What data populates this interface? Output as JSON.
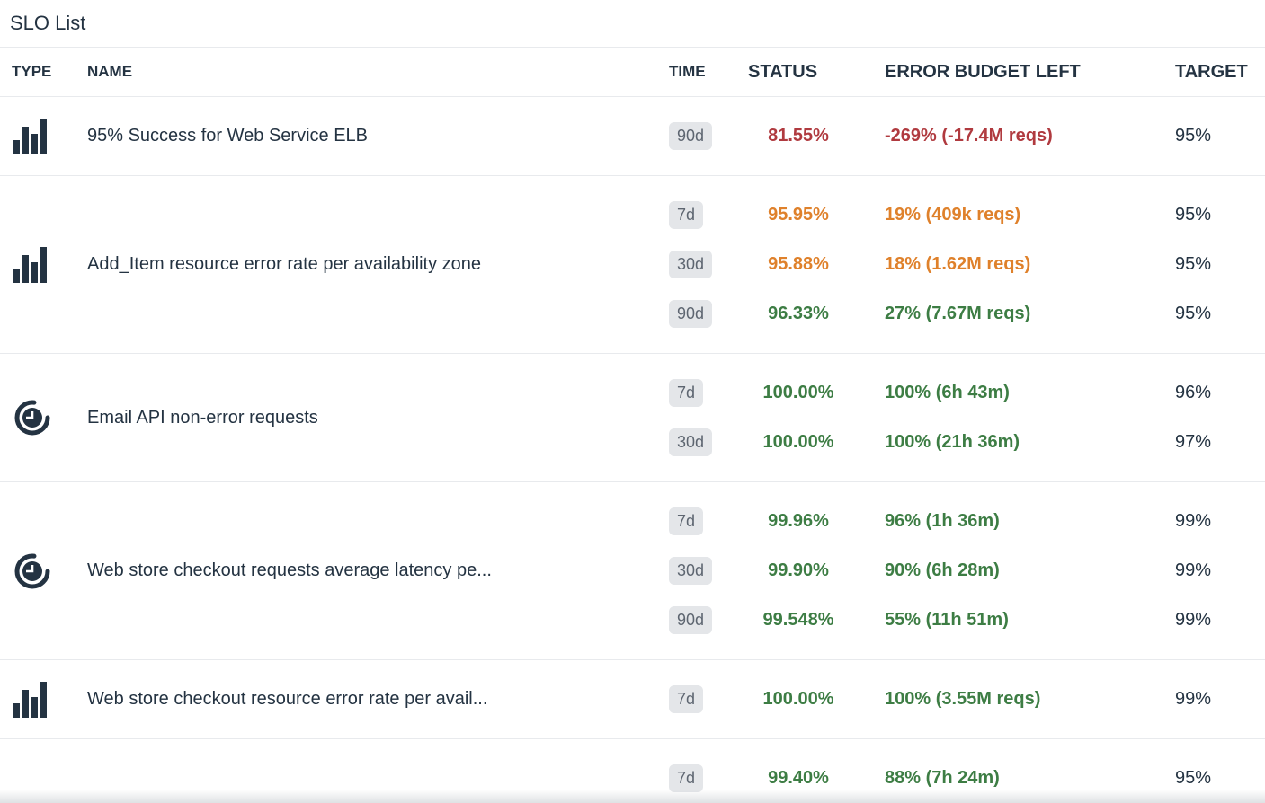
{
  "title": "SLO List",
  "columns": {
    "type": "TYPE",
    "name": "NAME",
    "time": "TIME",
    "status": "STATUS",
    "budget": "ERROR BUDGET LEFT",
    "target": "TARGET"
  },
  "colors": {
    "ok": "#3d7d44",
    "warn": "#df812b",
    "error": "#b03a3f",
    "text": "#243342",
    "badge_bg": "#e4e6e9",
    "badge_text": "#5d6570"
  },
  "icons": {
    "metric": "bar-chart-icon",
    "time": "clock-icon"
  },
  "rows": [
    {
      "type": "metric",
      "name": "95% Success for Web Service ELB",
      "windows": [
        {
          "time": "90d",
          "status": "81.55%",
          "budget": "-269% (-17.4M reqs)",
          "target": "95%",
          "severity": "error"
        }
      ]
    },
    {
      "type": "metric",
      "name": "Add_Item resource error rate per availability zone",
      "windows": [
        {
          "time": "7d",
          "status": "95.95%",
          "budget": "19% (409k reqs)",
          "target": "95%",
          "severity": "warn"
        },
        {
          "time": "30d",
          "status": "95.88%",
          "budget": "18% (1.62M reqs)",
          "target": "95%",
          "severity": "warn"
        },
        {
          "time": "90d",
          "status": "96.33%",
          "budget": "27% (7.67M reqs)",
          "target": "95%",
          "severity": "ok"
        }
      ]
    },
    {
      "type": "time",
      "name": "Email API non-error requests",
      "windows": [
        {
          "time": "7d",
          "status": "100.00%",
          "budget": "100% (6h 43m)",
          "target": "96%",
          "severity": "ok"
        },
        {
          "time": "30d",
          "status": "100.00%",
          "budget": "100% (21h 36m)",
          "target": "97%",
          "severity": "ok"
        }
      ]
    },
    {
      "type": "time",
      "name": "Web store checkout requests average latency pe...",
      "windows": [
        {
          "time": "7d",
          "status": "99.96%",
          "budget": "96% (1h 36m)",
          "target": "99%",
          "severity": "ok"
        },
        {
          "time": "30d",
          "status": "99.90%",
          "budget": "90% (6h 28m)",
          "target": "99%",
          "severity": "ok"
        },
        {
          "time": "90d",
          "status": "99.548%",
          "budget": "55% (11h 51m)",
          "target": "99%",
          "severity": "ok"
        }
      ]
    },
    {
      "type": "metric",
      "name": "Web store checkout resource error rate per avail...",
      "windows": [
        {
          "time": "7d",
          "status": "100.00%",
          "budget": "100% (3.55M reqs)",
          "target": "99%",
          "severity": "ok"
        }
      ]
    },
    {
      "type": "",
      "name": "",
      "windows": [
        {
          "time": "7d",
          "status": "99.40%",
          "budget": "88% (7h 24m)",
          "target": "95%",
          "severity": "ok"
        }
      ]
    }
  ]
}
